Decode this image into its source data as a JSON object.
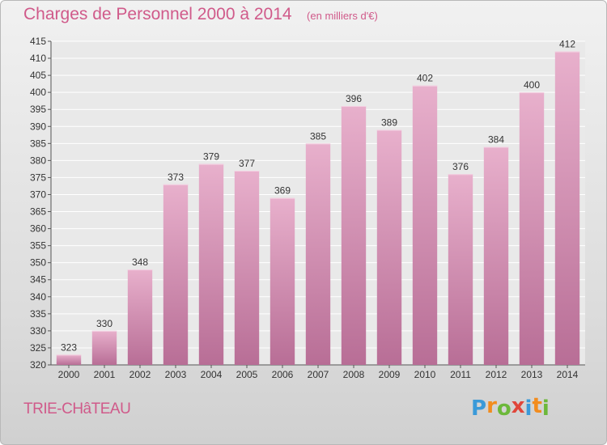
{
  "title": "Charges de Personnel 2000 à 2014",
  "unit_note": "(en milliers d'€)",
  "place_name": "TRIE-CHâTEAU",
  "logo": {
    "text": "Proxiti",
    "letters": [
      "P",
      "r",
      "o",
      "x",
      "i",
      "t",
      "i"
    ],
    "colors": [
      "#3a9ad9",
      "#f28c1e",
      "#6cb83a",
      "#e0463a",
      "#3a9ad9",
      "#f28c1e",
      "#6cb83a"
    ]
  },
  "colors": {
    "title": "#d05a8a",
    "bar_top": "#e8b0cc",
    "bar_bottom": "#b86e96",
    "axis": "#555555"
  },
  "chart_data": {
    "type": "bar",
    "categories": [
      "2000",
      "2001",
      "2002",
      "2003",
      "2004",
      "2005",
      "2006",
      "2007",
      "2008",
      "2009",
      "2010",
      "2011",
      "2012",
      "2013",
      "2014"
    ],
    "values": [
      323,
      330,
      348,
      373,
      379,
      377,
      369,
      385,
      396,
      389,
      402,
      376,
      384,
      400,
      412
    ],
    "ylim": [
      320,
      415
    ],
    "yticks": [
      320,
      325,
      330,
      335,
      340,
      345,
      350,
      355,
      360,
      365,
      370,
      375,
      380,
      385,
      390,
      395,
      400,
      405,
      410,
      415
    ],
    "grid": true,
    "data_labels": true
  }
}
